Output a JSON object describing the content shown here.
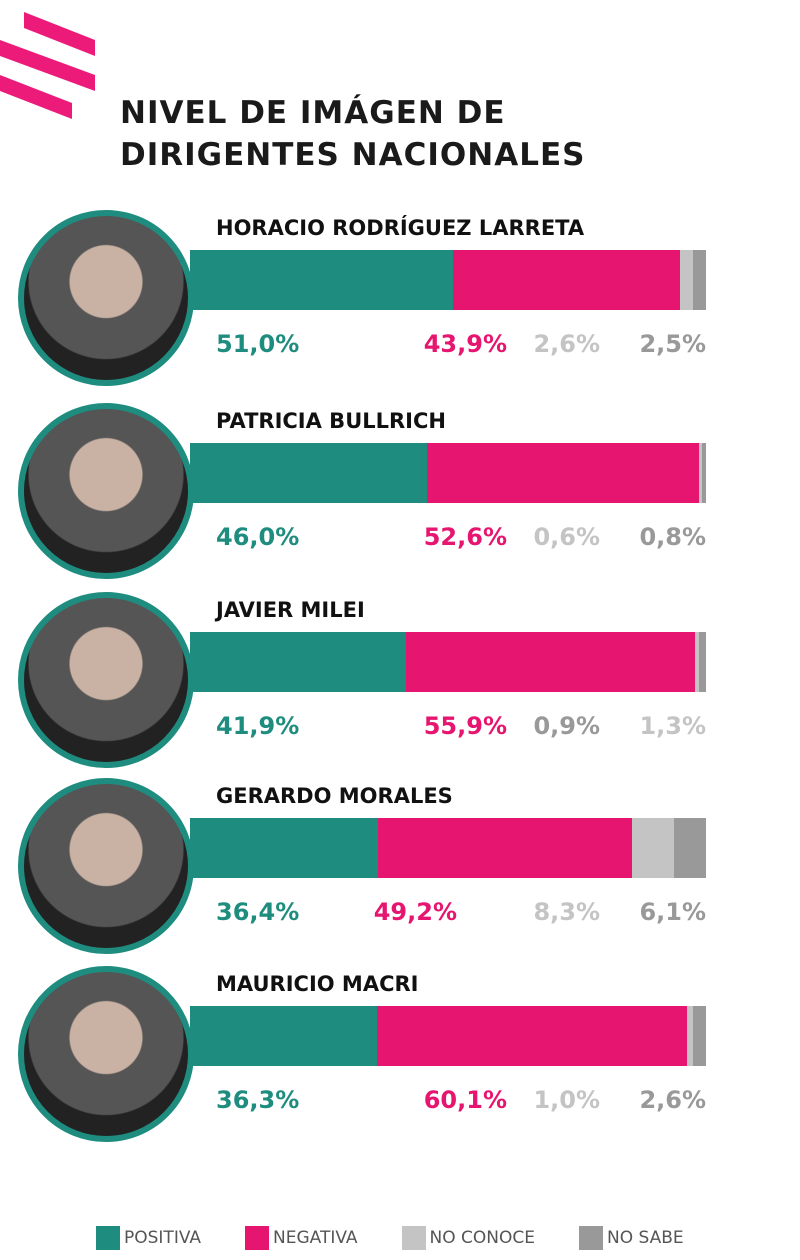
{
  "title_lines": [
    "NIVEL DE IMÁGEN DE",
    "DIRIGENTES NACIONALES"
  ],
  "colors": {
    "positiva": "#1e8c7e",
    "negativa": "#e6156f",
    "no_conoce": "#c4c4c4",
    "no_sabe": "#999999",
    "logo": "#ec1b79"
  },
  "chart_data": {
    "type": "bar",
    "orientation": "horizontal-stacked",
    "title": "NIVEL DE IMÁGEN DE DIRIGENTES NACIONALES",
    "categories": [
      "HORACIO RODRÍGUEZ LARRETA",
      "PATRICIA BULLRICH",
      "JAVIER MILEI",
      "GERARDO MORALES",
      "MAURICIO MACRI"
    ],
    "series": [
      {
        "name": "POSITIVA",
        "values": [
          51.0,
          46.0,
          41.9,
          36.4,
          36.3
        ],
        "labels": [
          "51,0%",
          "46,0%",
          "41,9%",
          "36,4%",
          "36,3%"
        ]
      },
      {
        "name": "NEGATIVA",
        "values": [
          43.9,
          52.6,
          55.9,
          49.2,
          60.1
        ],
        "labels": [
          "43,9%",
          "52,6%",
          "55,9%",
          "49,2%",
          "60,1%"
        ]
      },
      {
        "name": "NO CONOCE",
        "values": [
          2.6,
          0.6,
          0.9,
          8.3,
          1.0
        ],
        "labels": [
          "2,6%",
          "0,6%",
          "0,9%",
          "8,3%",
          "1,0%"
        ]
      },
      {
        "name": "NO SABE",
        "values": [
          2.5,
          0.8,
          1.3,
          6.1,
          2.6
        ],
        "labels": [
          "2,5%",
          "0,8%",
          "1,3%",
          "6,1%",
          "2,6%"
        ]
      }
    ],
    "label_colors": [
      [
        "#1e8c7e",
        "#e6156f",
        "#c4c4c4",
        "#999999"
      ],
      [
        "#1e8c7e",
        "#e6156f",
        "#c4c4c4",
        "#999999"
      ],
      [
        "#1e8c7e",
        "#e6156f",
        "#999999",
        "#c4c4c4"
      ],
      [
        "#1e8c7e",
        "#e6156f",
        "#c4c4c4",
        "#999999"
      ],
      [
        "#1e8c7e",
        "#e6156f",
        "#c4c4c4",
        "#999999"
      ]
    ],
    "legend_position": "bottom"
  }
}
